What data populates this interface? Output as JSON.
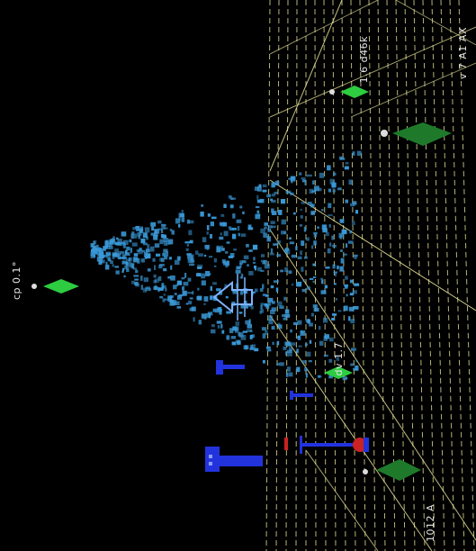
{
  "viewport": {
    "background": "#000000",
    "grid_color": "#f5f0a0",
    "point_color": "#3a9ad9",
    "marker_color": "#2ecc40",
    "probe_color": "#2233dd",
    "probe_head_color": "#cc2222",
    "cursor_color": "#7fb3ff"
  },
  "labels": {
    "left_marker": "cp 0.1°",
    "top_marker": "1.6 d46k",
    "right_edge": "v 7 A1 AX",
    "middle_marker": "dv 1.7",
    "bottom_right": "1012 A"
  },
  "icons": {
    "cursor": "hand-cursor-icon"
  }
}
